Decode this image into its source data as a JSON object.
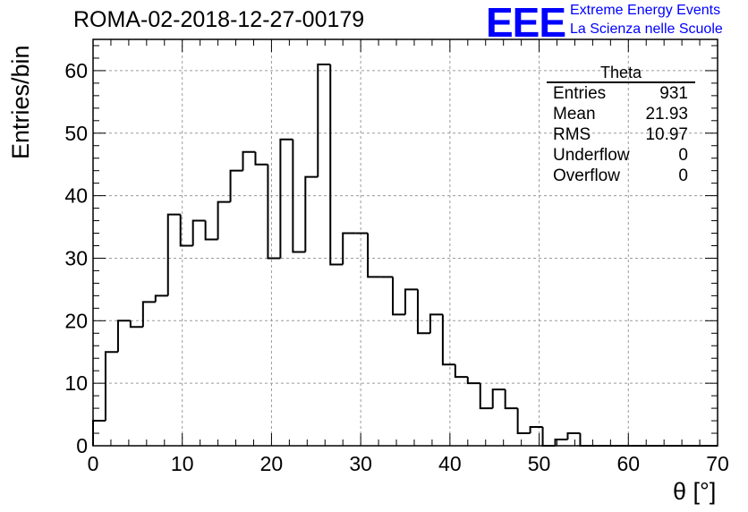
{
  "header": {
    "run_title": "ROMA-02-2018-12-27-00179"
  },
  "logo": {
    "mark": "EEE",
    "line1": "Extreme Energy Events",
    "line2": "La Scienza nelle Scuole",
    "color": "#0000ff"
  },
  "stats": {
    "title": "Theta",
    "rows": [
      {
        "label": "Entries",
        "value": "931"
      },
      {
        "label": "Mean",
        "value": "21.93"
      },
      {
        "label": "RMS",
        "value": "10.97"
      },
      {
        "label": "Underflow",
        "value": "0"
      },
      {
        "label": "Overflow",
        "value": "0"
      }
    ]
  },
  "chart_data": {
    "type": "bar",
    "style": "step-histogram",
    "xlabel": "θ [°]",
    "ylabel": "Entries/bin",
    "xlim": [
      0,
      70
    ],
    "ylim": [
      0,
      65
    ],
    "grid": true,
    "bin_width": 1.4,
    "bin_edges_start": 0,
    "xticks": [
      0,
      10,
      20,
      30,
      40,
      50,
      60,
      70
    ],
    "yticks": [
      0,
      10,
      20,
      30,
      40,
      50,
      60
    ],
    "values": [
      4,
      15,
      20,
      19,
      23,
      24,
      37,
      32,
      36,
      33,
      39,
      44,
      47,
      45,
      30,
      49,
      31,
      43,
      61,
      29,
      34,
      34,
      27,
      27,
      21,
      25,
      18,
      21,
      13,
      11,
      10,
      6,
      9,
      6,
      2,
      3,
      0,
      1,
      2,
      0,
      0,
      0,
      0,
      0,
      0,
      0,
      0,
      0,
      0,
      0
    ],
    "line_color": "#000000"
  }
}
